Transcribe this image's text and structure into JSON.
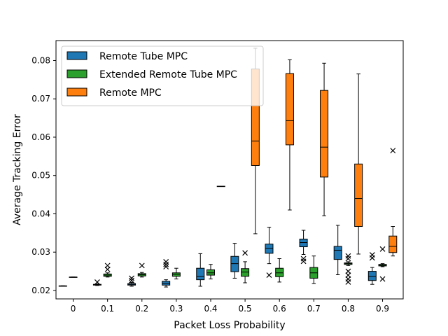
{
  "chart_data": {
    "type": "box",
    "title": "",
    "xlabel": "Packet Loss Probability",
    "ylabel": "Average Tracking Error",
    "xlim": [
      -0.05,
      0.96
    ],
    "ylim": [
      0.0178,
      0.0852
    ],
    "grid": false,
    "legend_position": "top-left",
    "x_ticks": [
      "0",
      "0.1",
      "0.2",
      "0.3",
      "0.4",
      "0.5",
      "0.6",
      "0.7",
      "0.8",
      "0.9"
    ],
    "y_ticks": [
      "0.02",
      "0.03",
      "0.04",
      "0.05",
      "0.06",
      "0.07",
      "0.08"
    ],
    "series": [
      {
        "name": "Remote Tube MPC",
        "color": "#1f77b4",
        "boxes": [
          {
            "x": -0.03,
            "q1": 0.0212,
            "median": 0.0212,
            "q3": 0.0212,
            "whislo": 0.0212,
            "whishi": 0.0212,
            "fliers": []
          },
          {
            "x": 0.07,
            "q1": 0.0214,
            "median": 0.0215,
            "q3": 0.0216,
            "whislo": 0.0213,
            "whishi": 0.0217,
            "fliers": [
              0.0222
            ]
          },
          {
            "x": 0.17,
            "q1": 0.0214,
            "median": 0.0216,
            "q3": 0.0218,
            "whislo": 0.0211,
            "whishi": 0.0221,
            "fliers": [
              0.0226,
              0.0232
            ]
          },
          {
            "x": 0.27,
            "q1": 0.0214,
            "median": 0.0219,
            "q3": 0.0224,
            "whislo": 0.0209,
            "whishi": 0.0228,
            "fliers": [
              0.0262,
              0.0268,
              0.0275
            ]
          },
          {
            "x": 0.37,
            "q1": 0.0228,
            "median": 0.0237,
            "q3": 0.0258,
            "whislo": 0.0211,
            "whishi": 0.0296,
            "fliers": []
          },
          {
            "x": 0.47,
            "q1": 0.0249,
            "median": 0.027,
            "q3": 0.0289,
            "whislo": 0.0232,
            "whishi": 0.0323,
            "fliers": []
          },
          {
            "x": 0.57,
            "q1": 0.0297,
            "median": 0.031,
            "q3": 0.0321,
            "whislo": 0.027,
            "whishi": 0.0365,
            "fliers": [
              0.024
            ]
          },
          {
            "x": 0.67,
            "q1": 0.0314,
            "median": 0.0325,
            "q3": 0.0334,
            "whislo": 0.0294,
            "whishi": 0.0357,
            "fliers": [
              0.0276,
              0.0283
            ]
          },
          {
            "x": 0.77,
            "q1": 0.0281,
            "median": 0.0305,
            "q3": 0.0315,
            "whislo": 0.0241,
            "whishi": 0.037,
            "fliers": []
          },
          {
            "x": 0.87,
            "q1": 0.0226,
            "median": 0.0237,
            "q3": 0.025,
            "whislo": 0.0216,
            "whishi": 0.026,
            "fliers": [
              0.0285,
              0.0293
            ]
          }
        ]
      },
      {
        "name": "Extended Remote Tube MPC",
        "color": "#2ca02c",
        "boxes": [
          {
            "x": 0.1,
            "q1": 0.0237,
            "median": 0.024,
            "q3": 0.0243,
            "whislo": 0.0235,
            "whishi": 0.0246,
            "fliers": [
              0.0255,
              0.0265
            ]
          },
          {
            "x": 0.2,
            "q1": 0.0238,
            "median": 0.0241,
            "q3": 0.0244,
            "whislo": 0.0235,
            "whishi": 0.0247,
            "fliers": [
              0.0265
            ]
          },
          {
            "x": 0.3,
            "q1": 0.0237,
            "median": 0.0242,
            "q3": 0.0246,
            "whislo": 0.023,
            "whishi": 0.0258,
            "fliers": []
          },
          {
            "x": 0.4,
            "q1": 0.024,
            "median": 0.0246,
            "q3": 0.0254,
            "whislo": 0.023,
            "whishi": 0.0268,
            "fliers": []
          },
          {
            "x": 0.5,
            "q1": 0.0237,
            "median": 0.0248,
            "q3": 0.0257,
            "whislo": 0.022,
            "whishi": 0.0275,
            "fliers": [
              0.0298
            ]
          },
          {
            "x": 0.6,
            "q1": 0.0236,
            "median": 0.0246,
            "q3": 0.0258,
            "whislo": 0.0222,
            "whishi": 0.0283,
            "fliers": []
          },
          {
            "x": 0.7,
            "q1": 0.0232,
            "median": 0.0246,
            "q3": 0.026,
            "whislo": 0.0218,
            "whishi": 0.029,
            "fliers": []
          },
          {
            "x": 0.8,
            "q1": 0.0268,
            "median": 0.027,
            "q3": 0.0272,
            "whislo": 0.0265,
            "whishi": 0.0275,
            "fliers": [
              0.0222,
              0.023,
              0.024,
              0.025,
              0.0283,
              0.029
            ]
          },
          {
            "x": 0.9,
            "q1": 0.0264,
            "median": 0.0266,
            "q3": 0.0268,
            "whislo": 0.0262,
            "whishi": 0.027,
            "fliers": [
              0.023,
              0.0308
            ]
          }
        ]
      },
      {
        "name": "Remote MPC",
        "color": "#ff7f0e",
        "boxes": [
          {
            "x": 0.0,
            "q1": 0.0235,
            "median": 0.0235,
            "q3": 0.0235,
            "whislo": 0.0235,
            "whishi": 0.0235,
            "fliers": []
          },
          {
            "x": 0.43,
            "q1": 0.0472,
            "median": 0.0472,
            "q3": 0.0472,
            "whislo": 0.0472,
            "whishi": 0.0472,
            "fliers": []
          },
          {
            "x": 0.53,
            "q1": 0.0526,
            "median": 0.059,
            "q3": 0.0778,
            "whislo": 0.0348,
            "whishi": 0.0832,
            "fliers": []
          },
          {
            "x": 0.63,
            "q1": 0.058,
            "median": 0.0643,
            "q3": 0.0766,
            "whislo": 0.041,
            "whishi": 0.0802,
            "fliers": []
          },
          {
            "x": 0.73,
            "q1": 0.0496,
            "median": 0.0574,
            "q3": 0.0722,
            "whislo": 0.0395,
            "whishi": 0.0793,
            "fliers": []
          },
          {
            "x": 0.83,
            "q1": 0.0367,
            "median": 0.044,
            "q3": 0.053,
            "whislo": 0.0295,
            "whishi": 0.0765,
            "fliers": []
          },
          {
            "x": 0.93,
            "q1": 0.0299,
            "median": 0.0315,
            "q3": 0.0342,
            "whislo": 0.029,
            "whishi": 0.0367,
            "fliers": [
              0.0565
            ]
          }
        ]
      }
    ]
  }
}
